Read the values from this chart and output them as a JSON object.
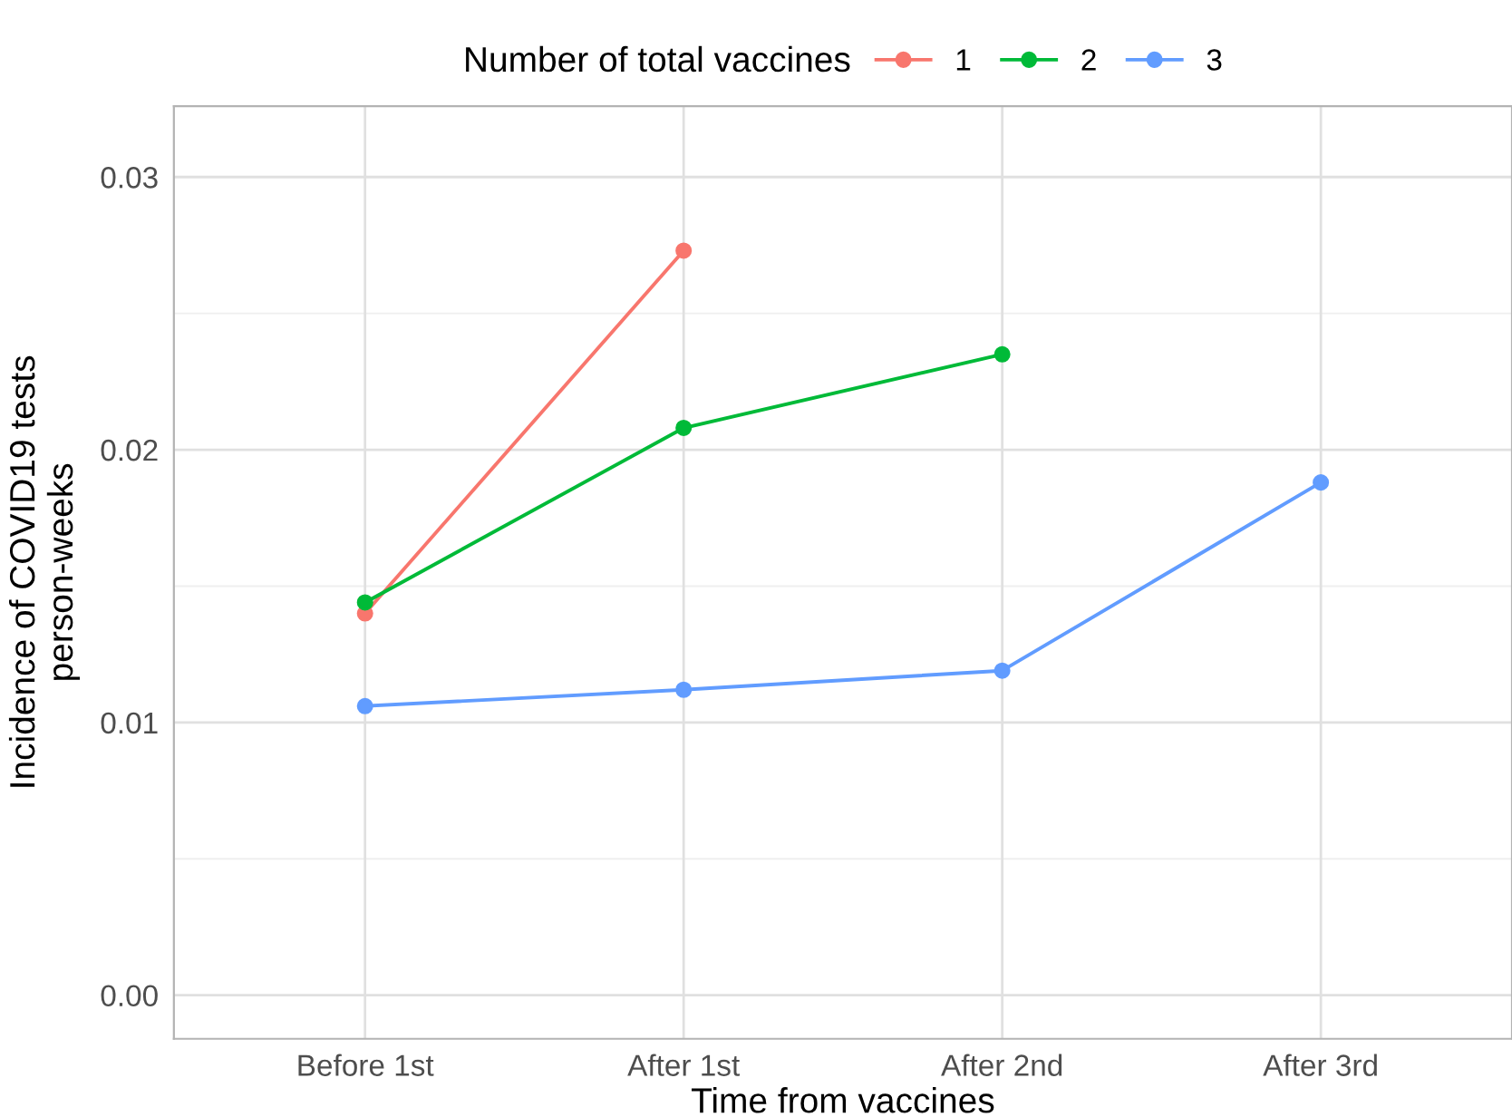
{
  "chart_data": {
    "type": "line",
    "xlabel": "Time from vaccines",
    "ylabel": "Incidence of COVID19 tests\nperson-weeks",
    "legend_title": "Number of total vaccines",
    "legend": "top",
    "grid": true,
    "marker": "circle",
    "line_style": "solid",
    "categories": [
      "Before 1st",
      "After 1st",
      "After 2nd",
      "After 3rd"
    ],
    "ylim": [
      -0.0016,
      0.0326
    ],
    "yticks": [
      {
        "value": 0,
        "label": "0.00"
      },
      {
        "value": 0.01,
        "label": "0.01"
      },
      {
        "value": 0.02,
        "label": "0.02"
      },
      {
        "value": 0.03,
        "label": "0.03"
      }
    ],
    "series": [
      {
        "name": "1",
        "color": "#f8766d",
        "values": [
          0.014,
          0.0273,
          null,
          null
        ]
      },
      {
        "name": "2",
        "color": "#00ba38",
        "values": [
          0.0144,
          0.0208,
          0.0235,
          null
        ]
      },
      {
        "name": "3",
        "color": "#619cff",
        "values": [
          0.0106,
          0.0112,
          0.0119,
          0.0188
        ]
      }
    ]
  }
}
